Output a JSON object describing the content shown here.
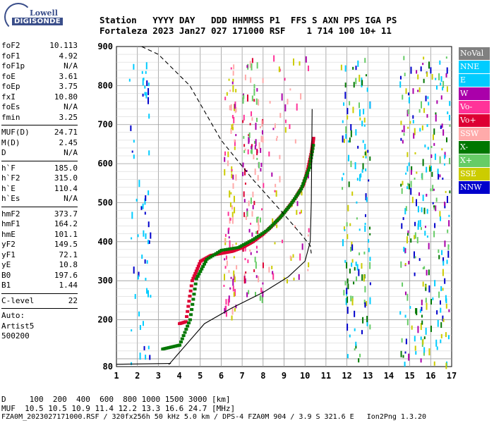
{
  "logo": {
    "top": "Lowell",
    "bottom": "DIGISONDE"
  },
  "header": {
    "line1": "Station   YYYY DAY   DDD HHMMSS P1  FFS S AXN PPS IGA PS",
    "line2": "Fortaleza 2023 Jan27 027 171000 RSF    1 714 100 10+ 11"
  },
  "params_group1": [
    {
      "name": "foF2",
      "value": "10.113"
    },
    {
      "name": "foF1",
      "value": "4.92"
    },
    {
      "name": "foF1p",
      "value": "N/A"
    },
    {
      "name": "foE",
      "value": "3.61"
    },
    {
      "name": "foEp",
      "value": "3.75"
    },
    {
      "name": "fxI",
      "value": "10.80"
    },
    {
      "name": "foEs",
      "value": "N/A"
    },
    {
      "name": "fmin",
      "value": "3.25"
    }
  ],
  "params_group2": [
    {
      "name": "MUF(D)",
      "value": "24.71"
    },
    {
      "name": "M(D)",
      "value": "2.45"
    },
    {
      "name": "D",
      "value": "N/A"
    }
  ],
  "params_group3": [
    {
      "name": "h`F",
      "value": "185.0"
    },
    {
      "name": "h`F2",
      "value": "315.0"
    },
    {
      "name": "h`E",
      "value": "110.4"
    },
    {
      "name": "h`Es",
      "value": "N/A"
    }
  ],
  "params_group4": [
    {
      "name": "hmF2",
      "value": "373.7"
    },
    {
      "name": "hmF1",
      "value": "164.2"
    },
    {
      "name": "hmE",
      "value": "101.1"
    },
    {
      "name": "yF2",
      "value": "149.5"
    },
    {
      "name": "yF1",
      "value": "72.1"
    },
    {
      "name": "yE",
      "value": "10.8"
    },
    {
      "name": "B0",
      "value": "197.6"
    },
    {
      "name": "B1",
      "value": "1.44"
    }
  ],
  "clevel": {
    "name": "C-level",
    "value": "22"
  },
  "autoscale": {
    "line1": "Auto:",
    "line2": "Artist5",
    "line3": "500200"
  },
  "legend": [
    {
      "label": "NoVal",
      "color": "#808080"
    },
    {
      "label": "NNE",
      "color": "#00ccff"
    },
    {
      "label": "E",
      "color": "#00ccff"
    },
    {
      "label": "W",
      "color": "#aa00aa"
    },
    {
      "label": "Vo-",
      "color": "#ff3399"
    },
    {
      "label": "Vo+",
      "color": "#dd0033"
    },
    {
      "label": "SSW",
      "color": "#ffaaaa"
    },
    {
      "label": "X-",
      "color": "#007700"
    },
    {
      "label": "X+",
      "color": "#66cc66"
    },
    {
      "label": "SSE",
      "color": "#cccc00"
    },
    {
      "label": "NNW",
      "color": "#0000cc"
    }
  ],
  "chart_data": {
    "type": "scatter",
    "xlim": [
      1,
      17
    ],
    "ylim": [
      80,
      900
    ],
    "xticks": [
      "1",
      "2",
      "3",
      "4",
      "5",
      "6",
      "7",
      "8",
      "9",
      "10",
      "11",
      "12",
      "13",
      "14",
      "15",
      "16",
      "17"
    ],
    "yticks": [
      "80",
      "200",
      "300",
      "400",
      "500",
      "600",
      "700",
      "800",
      "900"
    ],
    "grid": true,
    "series": [
      {
        "kind": "trace",
        "color": "#dd0033",
        "points": [
          [
            4.0,
            190
          ],
          [
            4.3,
            195
          ],
          [
            4.6,
            300
          ],
          [
            5.0,
            350
          ],
          [
            5.5,
            365
          ],
          [
            6.0,
            370
          ],
          [
            6.5,
            375
          ],
          [
            7.0,
            385
          ],
          [
            7.5,
            400
          ],
          [
            8.0,
            420
          ],
          [
            8.5,
            445
          ],
          [
            9.0,
            475
          ],
          [
            9.5,
            510
          ],
          [
            9.9,
            545
          ],
          [
            10.1,
            580
          ],
          [
            10.3,
            630
          ],
          [
            10.4,
            670
          ]
        ]
      },
      {
        "kind": "trace",
        "color": "#007700",
        "points": [
          [
            3.2,
            125
          ],
          [
            3.6,
            130
          ],
          [
            4.0,
            135
          ],
          [
            4.5,
            200
          ],
          [
            4.8,
            305
          ],
          [
            5.3,
            355
          ],
          [
            6.0,
            378
          ],
          [
            6.8,
            385
          ],
          [
            7.5,
            405
          ],
          [
            8.2,
            430
          ],
          [
            8.8,
            462
          ],
          [
            9.3,
            495
          ],
          [
            9.8,
            535
          ],
          [
            10.2,
            590
          ],
          [
            10.4,
            655
          ]
        ]
      }
    ],
    "bottom_rows": {
      "distance_label": "D",
      "distances": [
        "100",
        "200",
        "400",
        "600",
        "800",
        "1000",
        "1500",
        "3000"
      ],
      "distance_unit": "[km]",
      "muf_label": "MUF",
      "mufs": [
        "10.5",
        "10.5",
        "10.9",
        "11.4",
        "12.2",
        "13.3",
        "16.6",
        "24.7"
      ],
      "muf_unit": "[MHz]"
    }
  },
  "footer": "FZA0M_2023027171000.RSF / 320fx256h 50 kHz 5.0 km / DPS-4 FZA0M 904 / 3.9 S 321.6 E   Ion2Png 1.3.20"
}
